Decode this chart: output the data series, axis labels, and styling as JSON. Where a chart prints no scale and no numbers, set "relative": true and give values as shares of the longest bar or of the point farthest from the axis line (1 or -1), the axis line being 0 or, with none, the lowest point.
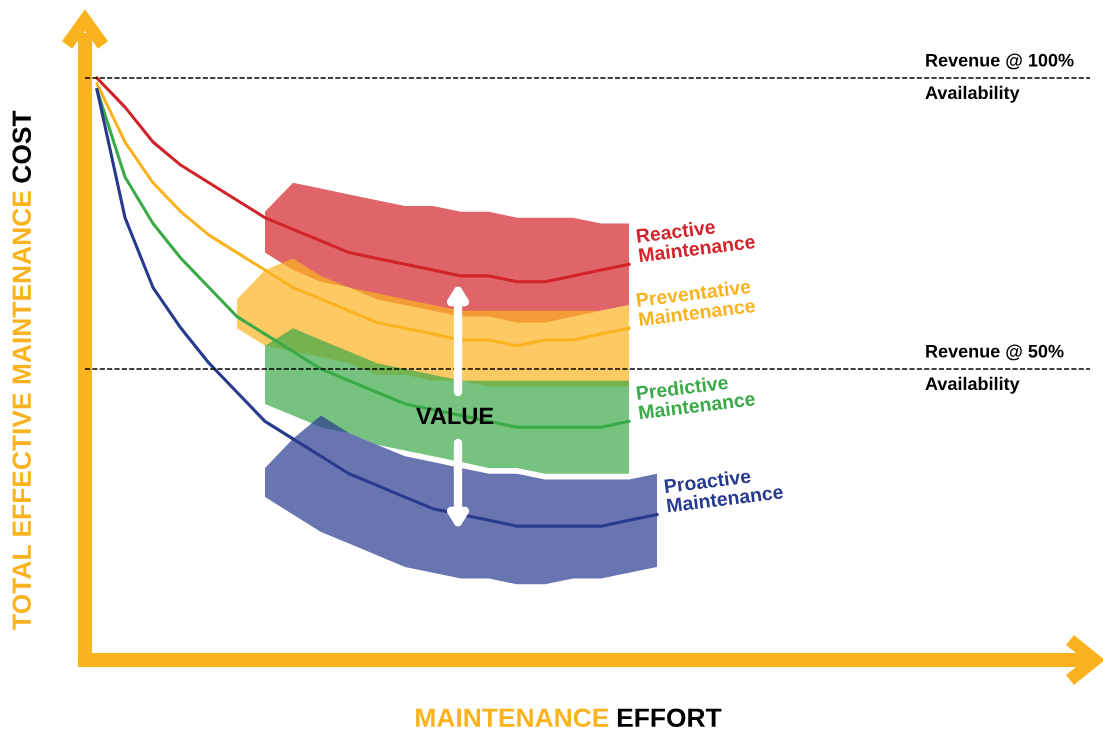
{
  "chart_data": {
    "type": "line",
    "relative": true,
    "xlabel": "MAINTENANCE EFFORT",
    "ylabel": "TOTAL EFFECTIVE MAINTENANCE COST",
    "categories": [
      null,
      null,
      null,
      null,
      null,
      null,
      null,
      null,
      null,
      null,
      null,
      null,
      null,
      null,
      null,
      null,
      null,
      null,
      null,
      null,
      null
    ],
    "series": [
      {
        "name": "Reactive Maintenance",
        "color": "#d2232a",
        "values": [
          1.0,
          0.95,
          0.89,
          0.85,
          0.82,
          0.79,
          0.76,
          0.74,
          0.72,
          0.7,
          0.69,
          0.68,
          0.67,
          0.66,
          0.66,
          0.65,
          0.65,
          0.66,
          0.67,
          0.68,
          null
        ],
        "upper": [
          null,
          null,
          null,
          null,
          null,
          null,
          0.77,
          0.82,
          0.81,
          0.8,
          0.79,
          0.78,
          0.78,
          0.77,
          0.77,
          0.76,
          0.76,
          0.76,
          0.75,
          0.75,
          null
        ],
        "lower": [
          null,
          null,
          null,
          null,
          null,
          null,
          0.7,
          0.67,
          0.65,
          0.64,
          0.62,
          0.61,
          0.6,
          0.59,
          0.59,
          0.58,
          0.58,
          0.59,
          0.6,
          0.61,
          null
        ]
      },
      {
        "name": "Preventative Maintenance",
        "color": "#fbb21f",
        "values": [
          0.99,
          0.89,
          0.82,
          0.77,
          0.73,
          0.7,
          0.67,
          0.64,
          0.62,
          0.6,
          0.58,
          0.57,
          0.56,
          0.55,
          0.55,
          0.54,
          0.55,
          0.55,
          0.56,
          0.57,
          null
        ],
        "upper": [
          null,
          null,
          null,
          null,
          null,
          0.62,
          0.67,
          0.69,
          0.66,
          0.64,
          0.63,
          0.62,
          0.61,
          0.6,
          0.6,
          0.6,
          0.6,
          0.6,
          0.6,
          0.61,
          null
        ],
        "lower": [
          null,
          null,
          null,
          null,
          null,
          0.57,
          0.54,
          0.53,
          0.52,
          0.51,
          0.49,
          0.49,
          0.48,
          0.48,
          0.47,
          0.47,
          0.47,
          0.47,
          0.47,
          0.47,
          null
        ]
      },
      {
        "name": "Predictive Maintenance",
        "color": "#3aaa48",
        "values": [
          0.98,
          0.83,
          0.75,
          0.69,
          0.64,
          0.59,
          0.56,
          0.53,
          0.5,
          0.48,
          0.46,
          0.44,
          0.43,
          0.42,
          0.41,
          0.4,
          0.4,
          0.4,
          0.4,
          0.41,
          null
        ],
        "upper": [
          null,
          null,
          null,
          null,
          null,
          null,
          0.54,
          0.57,
          0.55,
          0.53,
          0.51,
          0.5,
          0.49,
          0.48,
          0.48,
          0.48,
          0.48,
          0.48,
          0.48,
          0.48,
          null
        ],
        "lower": [
          null,
          null,
          null,
          null,
          null,
          null,
          0.44,
          0.42,
          0.4,
          0.39,
          0.37,
          0.36,
          0.35,
          0.34,
          0.33,
          0.33,
          0.32,
          0.32,
          0.32,
          0.32,
          null
        ]
      },
      {
        "name": "Proactive Maintenance",
        "color": "#283a8e",
        "values": [
          0.98,
          0.76,
          0.64,
          0.57,
          0.51,
          0.46,
          0.41,
          0.38,
          0.35,
          0.32,
          0.3,
          0.28,
          0.26,
          0.25,
          0.24,
          0.23,
          0.23,
          0.23,
          0.23,
          0.24,
          0.25
        ],
        "upper": [
          null,
          null,
          null,
          null,
          null,
          null,
          0.33,
          0.38,
          0.42,
          0.39,
          0.37,
          0.35,
          0.34,
          0.33,
          0.32,
          0.32,
          0.31,
          0.31,
          0.31,
          0.31,
          0.32
        ],
        "lower": [
          null,
          null,
          null,
          null,
          null,
          null,
          0.28,
          0.25,
          0.22,
          0.2,
          0.18,
          0.16,
          0.15,
          0.14,
          0.14,
          0.13,
          0.13,
          0.14,
          0.14,
          0.15,
          0.16
        ]
      }
    ],
    "ref_lines": [
      {
        "axis": "y",
        "value": 1.0,
        "label": "Revenue @ 100%\nAvailability",
        "line_style": "dashed",
        "color": "#000000"
      },
      {
        "axis": "y",
        "value": 0.5,
        "label": "Revenue @ 50%\nAvailability",
        "line_style": "dashed",
        "color": "#000000"
      }
    ],
    "annotations": [
      "VALUE"
    ],
    "legend": false,
    "marker": "none",
    "line_style": "solid"
  }
}
